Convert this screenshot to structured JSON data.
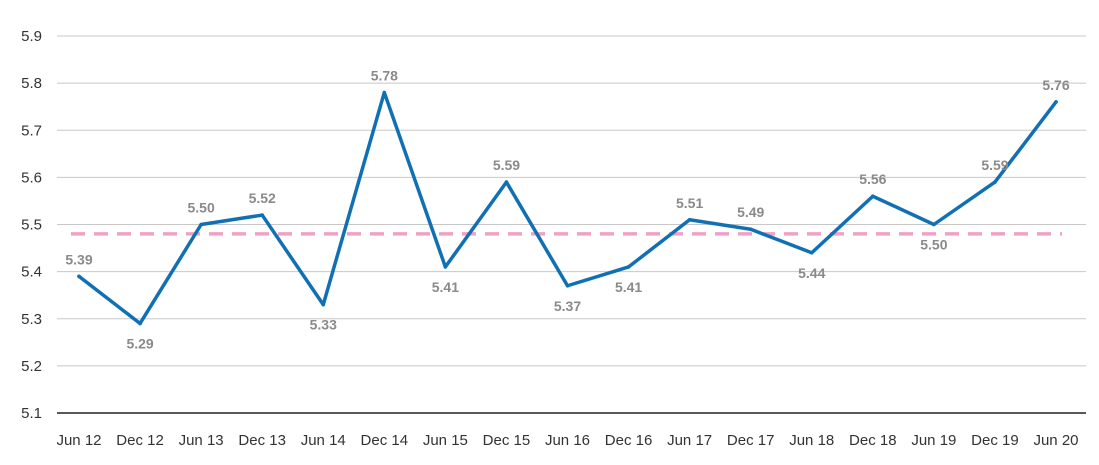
{
  "chart_data": {
    "type": "line",
    "title": "",
    "xlabel": "",
    "ylabel": "",
    "categories": [
      "Jun 12",
      "Dec 12",
      "Jun 13",
      "Dec 13",
      "Jun 14",
      "Dec 14",
      "Jun 15",
      "Dec 15",
      "Jun 16",
      "Dec 16",
      "Jun 17",
      "Dec 17",
      "Jun 18",
      "Dec 18",
      "Jun 19",
      "Dec 19",
      "Jun 20"
    ],
    "series": [
      {
        "values": [
          5.39,
          5.29,
          5.5,
          5.52,
          5.33,
          5.78,
          5.41,
          5.59,
          5.37,
          5.41,
          5.51,
          5.49,
          5.44,
          5.56,
          5.5,
          5.59,
          5.76
        ],
        "labels": [
          "5.39",
          "5.29",
          "5.50",
          "5.52",
          "5.33",
          "5.78",
          "5.41",
          "5.59",
          "5.37",
          "5.41",
          "5.51",
          "5.49",
          "5.44",
          "5.56",
          "5.50",
          "5.59",
          "5.76"
        ],
        "label_side": [
          "above",
          "below",
          "above",
          "above",
          "below",
          "above",
          "below",
          "above",
          "below",
          "below",
          "above",
          "above",
          "below",
          "above",
          "below",
          "above",
          "above"
        ],
        "color": "#1170b4"
      }
    ],
    "reference_line": {
      "value": 5.48,
      "color": "#f3a0c6",
      "style": "dashed"
    },
    "ylim": [
      5.1,
      5.9
    ],
    "yticks": [
      5.1,
      5.2,
      5.3,
      5.4,
      5.5,
      5.6,
      5.7,
      5.8,
      5.9
    ],
    "ytick_labels": [
      "5.1",
      "5.2",
      "5.3",
      "5.4",
      "5.5",
      "5.6",
      "5.7",
      "5.8",
      "5.9"
    ],
    "grid": true,
    "legend": "none",
    "colors": {
      "gridline": "#c8c8c8",
      "axis": "#222222",
      "tick_text": "#333333",
      "data_label_text": "#8a8a8a"
    }
  }
}
